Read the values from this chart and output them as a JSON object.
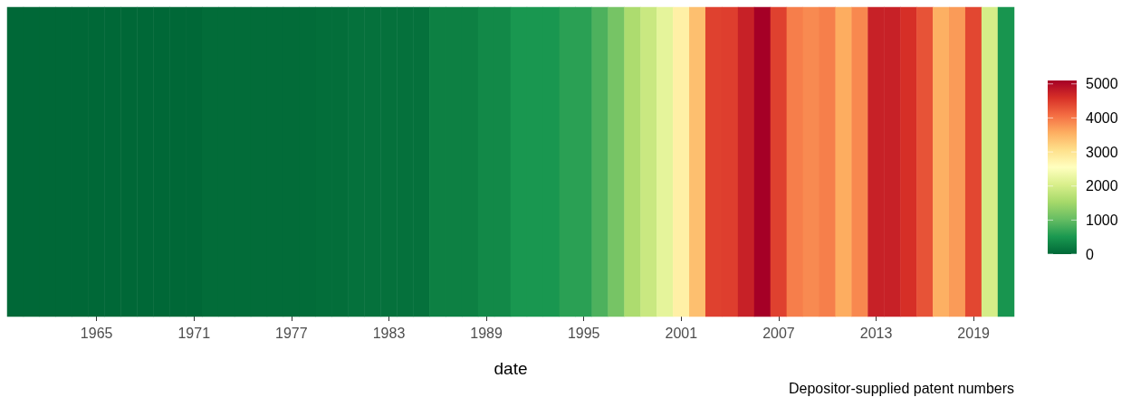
{
  "chart_data": {
    "type": "heatmap",
    "xlabel": "date",
    "categories": [
      null,
      null,
      null,
      null,
      null,
      "1965",
      null,
      null,
      null,
      null,
      null,
      "1971",
      null,
      null,
      null,
      null,
      null,
      "1977",
      null,
      null,
      null,
      null,
      null,
      "1983",
      null,
      null,
      null,
      null,
      null,
      "1989",
      null,
      null,
      null,
      null,
      null,
      "1995",
      null,
      null,
      null,
      null,
      null,
      "2001",
      null,
      null,
      null,
      null,
      null,
      "2007",
      null,
      null,
      null,
      null,
      null,
      "2013",
      null,
      null,
      null,
      null,
      null,
      "2019",
      null,
      null
    ],
    "y_categories": [
      null
    ],
    "cells": [
      [
        0,
        0,
        0,
        0,
        0,
        0,
        0,
        0,
        0,
        0,
        0,
        0,
        40,
        40,
        40,
        40,
        40,
        40,
        40,
        60,
        60,
        100,
        100,
        100,
        100,
        100,
        250,
        250,
        250,
        350,
        350,
        500,
        500,
        500,
        620,
        620,
        850,
        1150,
        1600,
        1880,
        2200,
        2800,
        3400,
        4450,
        4470,
        4750,
        5100,
        4450,
        3950,
        3850,
        3940,
        3580,
        3870,
        4750,
        4750,
        4600,
        4300,
        3550,
        3720,
        4400,
        2000,
        480
      ]
    ],
    "clim": [
      0,
      5100
    ],
    "cticks": [
      0,
      1000,
      2000,
      3000,
      4000,
      5000
    ],
    "annotations": [
      "Depositor-supplied patent numbers"
    ]
  }
}
